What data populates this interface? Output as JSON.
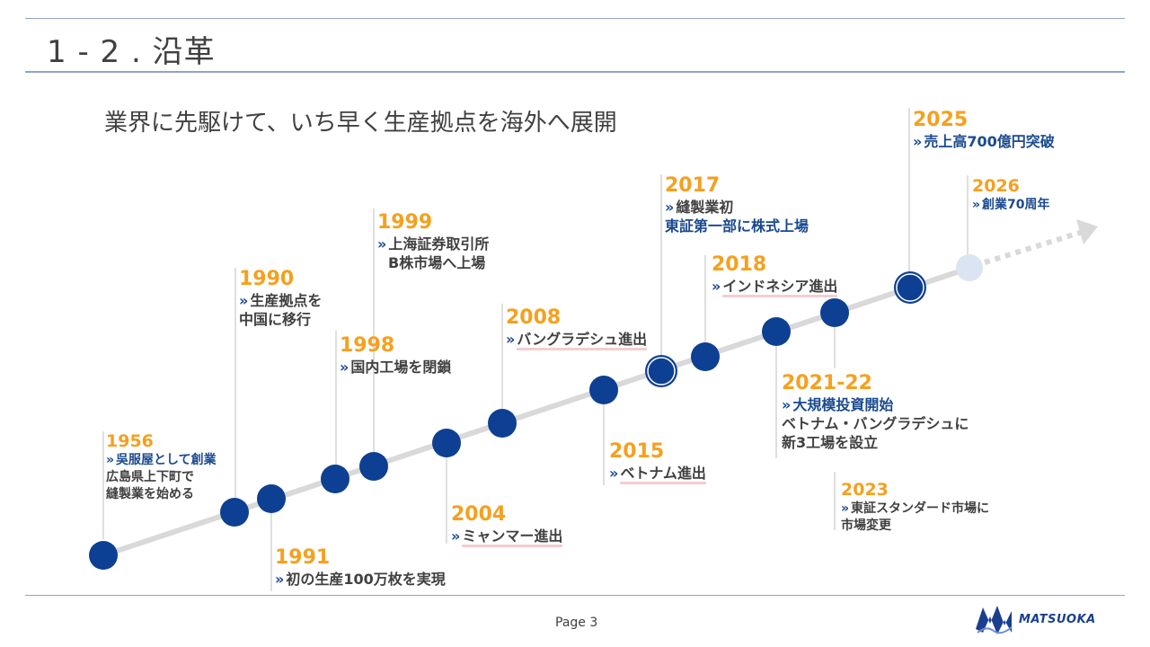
{
  "header": {
    "title": "1 - 2 . 沿革"
  },
  "subtitle": "業界に先駆けて、いち早く生産拠点を海外へ展開",
  "events": [
    {
      "year": "1956",
      "lines": [
        "吳服屋として創業",
        "広島県上下町で",
        "縫製業を始める"
      ]
    },
    {
      "year": "1990",
      "lines": [
        "生産拠点を",
        "中国に移行"
      ]
    },
    {
      "year": "1991",
      "lines": [
        "初の生産100万枚を実現"
      ]
    },
    {
      "year": "1998",
      "lines": [
        "国内工場を閉鎖"
      ]
    },
    {
      "year": "1999",
      "lines": [
        "上海証券取引所",
        "B株市場へ上場"
      ]
    },
    {
      "year": "2004",
      "lines": [
        "ミャンマー進出"
      ]
    },
    {
      "year": "2008",
      "lines": [
        "バングラデシュ進出"
      ]
    },
    {
      "year": "2015",
      "lines": [
        "ベトナム進出"
      ]
    },
    {
      "year": "2017",
      "lines": [
        "縫製業初",
        "東証第一部に株式上場"
      ]
    },
    {
      "year": "2018",
      "lines": [
        "インドネシア進出"
      ]
    },
    {
      "year": "2021-22",
      "lines": [
        "大規模投資開始",
        "ベトナム・バングラデシュに",
        "新3工場を設立"
      ]
    },
    {
      "year": "2023",
      "lines": [
        "東証スタンダード市場に",
        "市場変更"
      ]
    },
    {
      "year": "2025",
      "lines": [
        "売上高700億円突破"
      ]
    },
    {
      "year": "2026",
      "lines": [
        "創業70周年"
      ]
    }
  ],
  "footer": {
    "page": "Page 3",
    "logo_text": "MATSUOKA"
  },
  "colors": {
    "year": "#f5a01f",
    "accent_blue": "#1a4a8e",
    "node": "#0d3f93",
    "line": "#d9d9d9",
    "rule": "#8ea4c8"
  },
  "icons": {
    "bullet": "double-chevron-right-icon",
    "logo": "matsuoka-logo-icon"
  }
}
